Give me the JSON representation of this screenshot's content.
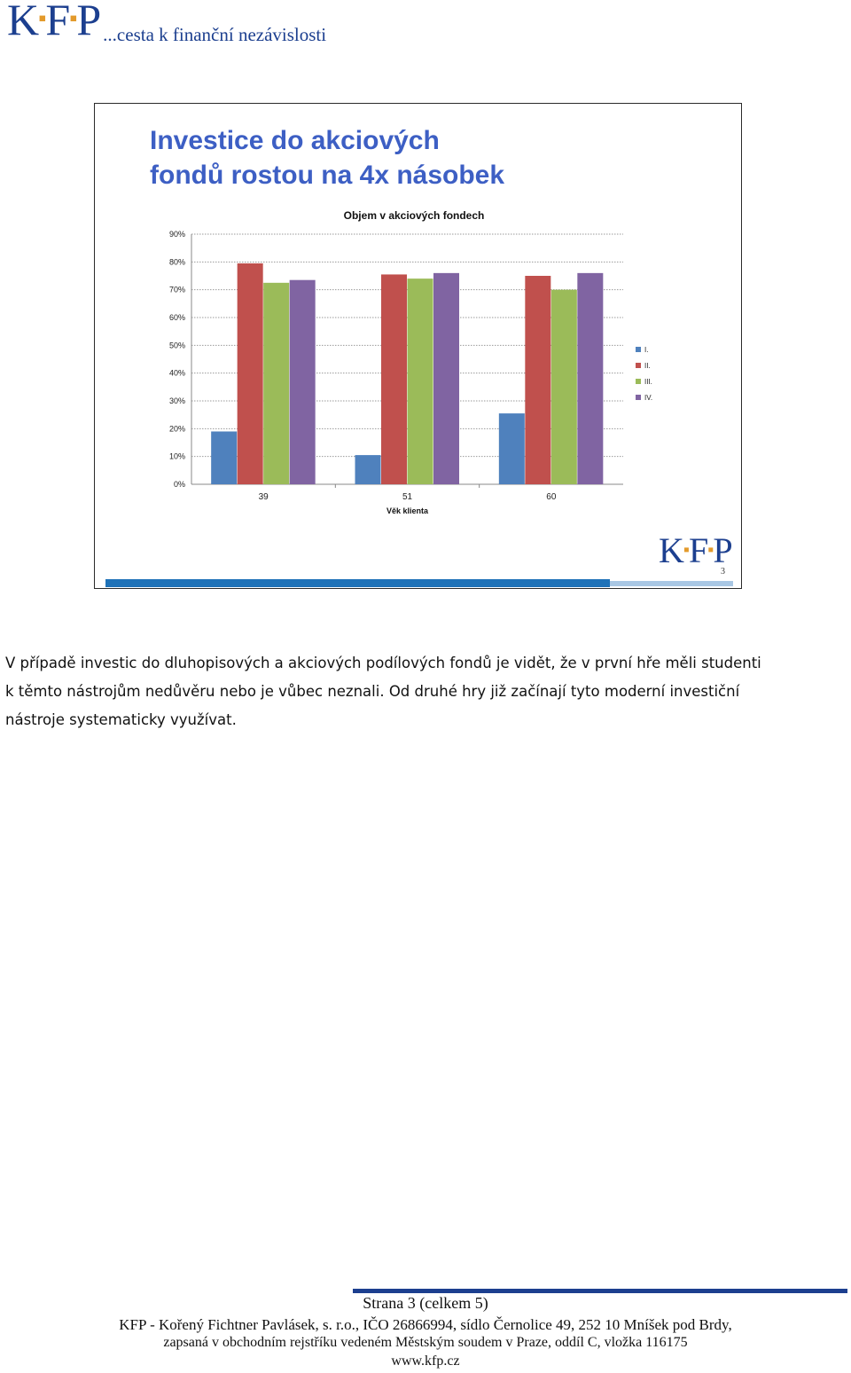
{
  "header": {
    "logo_letters": [
      "K",
      "F",
      "P"
    ],
    "motto": "...cesta k finanční nezávislosti"
  },
  "slide": {
    "title_lines": [
      "Investice do akciových",
      "fondů rostou na 4x násobek"
    ],
    "logo_letters": [
      "K",
      "F",
      "P"
    ],
    "page_number": "3",
    "bar_colors": {
      "dark": "#1f72b8",
      "light": "#a9c7e4"
    }
  },
  "chart_data": {
    "type": "bar",
    "title": "Objem v akciových fondech",
    "xlabel": "Věk klienta",
    "ylabel": "",
    "categories": [
      "39",
      "51",
      "60"
    ],
    "ylim": [
      0,
      90
    ],
    "yticks": [
      "0%",
      "10%",
      "20%",
      "30%",
      "40%",
      "50%",
      "60%",
      "70%",
      "80%",
      "90%"
    ],
    "grid": true,
    "legend_position": "right",
    "series": [
      {
        "name": "I.",
        "color": "#4f81bd",
        "values": [
          19,
          10.5,
          25.5
        ]
      },
      {
        "name": "II.",
        "color": "#c0504d",
        "values": [
          79.5,
          75.5,
          75
        ]
      },
      {
        "name": "III.",
        "color": "#9bbb59",
        "values": [
          72.5,
          74,
          70
        ]
      },
      {
        "name": "IV.",
        "color": "#8064a2",
        "values": [
          73.5,
          76,
          76
        ]
      }
    ]
  },
  "paragraph": {
    "lines": [
      "V případě investic do dluhopisových a akciových podílových fondů je vidět, že v první hře měli studenti",
      "k těmto nástrojům nedůvěru nebo je vůbec neznali. Od druhé hry již začínají tyto moderní investiční",
      "nástroje systematicky využívat."
    ]
  },
  "footer": {
    "page": "Strana 3 (celkem 5)",
    "company": "KFP - Kořený Fichtner Pavlásek, s. r.o., IČO 26866994, sídlo Černolice 49, 252 10  Mníšek pod Brdy,",
    "registry": "zapsaná v obchodním rejstříku vedeném Městským soudem v Praze, oddíl C, vložka 116175",
    "web": "www.kfp.cz"
  }
}
